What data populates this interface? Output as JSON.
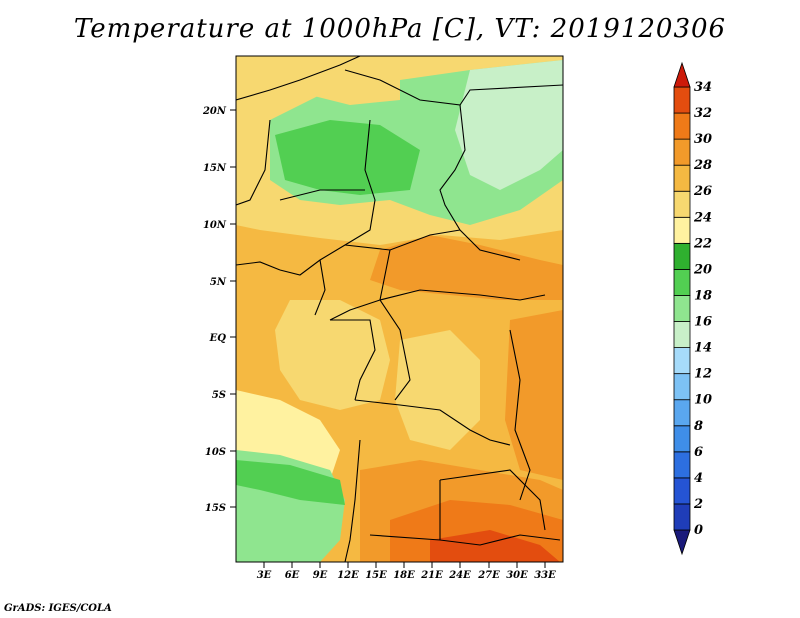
{
  "title": "Temperature at 1000hPa [C], VT: 2019120306",
  "footer": "GrADS: IGES/COLA",
  "map": {
    "lat_labels": [
      "20N",
      "15N",
      "10N",
      "5N",
      "EQ",
      "5S",
      "10S",
      "15S"
    ],
    "lon_labels": [
      "3E",
      "6E",
      "9E",
      "12E",
      "15E",
      "18E",
      "21E",
      "24E",
      "27E",
      "30E",
      "33E"
    ]
  },
  "colorbar": {
    "levels": [
      "0",
      "2",
      "4",
      "6",
      "8",
      "10",
      "12",
      "14",
      "16",
      "18",
      "20",
      "22",
      "24",
      "26",
      "28",
      "30",
      "32",
      "34"
    ],
    "colors": [
      "#1a1a7a",
      "#1f3db8",
      "#2554d4",
      "#2d6fe0",
      "#3f8ee8",
      "#5aa7ef",
      "#7dc2f5",
      "#a6dbfa",
      "#c8f0c8",
      "#8fe58f",
      "#52cf52",
      "#2fb02f",
      "#fff2a0",
      "#f7d870",
      "#f5b942",
      "#f29a2a",
      "#ef7a18",
      "#e34d0f",
      "#cc1a0a"
    ]
  }
}
